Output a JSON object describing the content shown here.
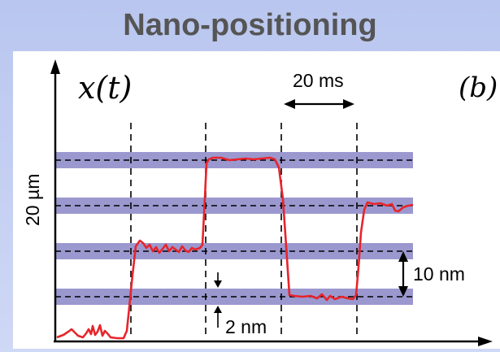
{
  "title": "Nano-positioning",
  "figure": {
    "axis_label": "x(t)",
    "panel_label": "(b)",
    "time_scale_label": "20 ms",
    "vertical_scale_label": "20 µm",
    "band_spacing_label": "10 nm",
    "band_width_label": "2 nm",
    "colors": {
      "band": "#9b98cf",
      "trace": "#e8242b",
      "dashed": "#000000"
    }
  }
}
